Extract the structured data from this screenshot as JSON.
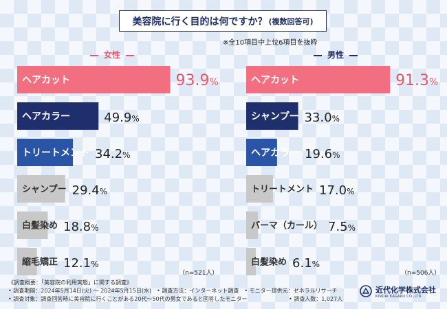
{
  "title": "美容院に行く目的は何ですか？",
  "title_suffix": "(複数回答可)",
  "note": "※全10項目中上位6項目を抜粋",
  "chart_data": [
    {
      "type": "bar",
      "orientation": "horizontal",
      "series_name": "女性",
      "categories": [
        "ヘアカット",
        "ヘアカラー",
        "トリートメント",
        "シャンプー",
        "白髪染め",
        "縮毛矯正"
      ],
      "values": [
        93.9,
        49.9,
        34.2,
        29.4,
        18.8,
        12.1
      ],
      "unit": "%",
      "value_labels": [
        "93.9%",
        "49.9%",
        "34.2%",
        "29.4%",
        "18.8%",
        "12.1%"
      ],
      "n_label": "（n=521人）",
      "xlim": [
        0,
        100
      ],
      "colors": [
        "#f26f82",
        "#1f2f6e",
        "#2a55a6",
        "#c8c8c8",
        "#c8c8c8",
        "#c8c8c8"
      ]
    },
    {
      "type": "bar",
      "orientation": "horizontal",
      "series_name": "男性",
      "categories": [
        "ヘアカット",
        "シャンプー",
        "ヘアカラー",
        "トリートメント",
        "パーマ（カール）",
        "白髪染め"
      ],
      "values": [
        91.3,
        33.0,
        19.6,
        17.0,
        7.5,
        6.1
      ],
      "unit": "%",
      "value_labels": [
        "91.3%",
        "33.0%",
        "19.6%",
        "17.0%",
        "7.5%",
        "6.1%"
      ],
      "n_label": "（n=506人）",
      "xlim": [
        0,
        100
      ],
      "colors": [
        "#f26f82",
        "#1f2f6e",
        "#2a55a6",
        "#c8c8c8",
        "#c8c8c8",
        "#c8c8c8"
      ]
    }
  ],
  "footer": {
    "line1": "《調査概要：「美容院の利用実態」に関する調査》",
    "line2": "• 調査期間：2024年5月14日(火) ～ 2024年5月15日(水)　• 調査方法：インターネット調査　• モニター提供元：ゼネラルリサーチ",
    "line3": "• 調査対象：調査回答時に美容院に行くことがある20代～50代の男女であると回答したモニター",
    "line3_right": "• 調査人数：1,027人"
  },
  "logo": {
    "name": "近代化学株式会社",
    "subtitle": "KINDAI KAGAKU CO.,LTD."
  }
}
